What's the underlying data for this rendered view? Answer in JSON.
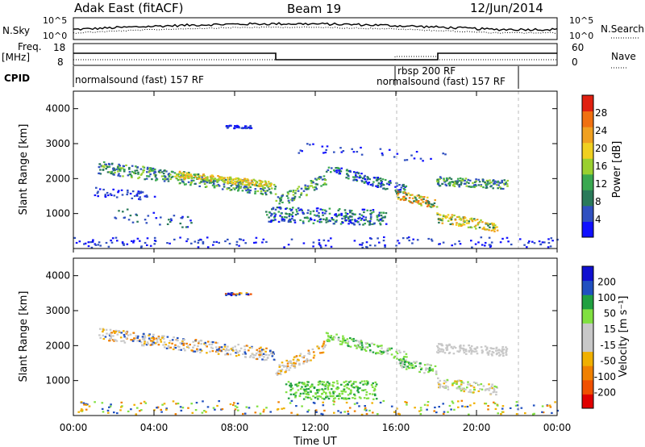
{
  "header": {
    "title": "Adak East (fitACF)",
    "beam": "Beam 19",
    "date": "12/Jun/2014"
  },
  "top_panels": {
    "nsky": {
      "label": "N.Sky",
      "right_label": "N.Search",
      "left_ticks": [
        "10^5",
        "10^0"
      ],
      "right_ticks": [
        "10^5",
        "10^0"
      ]
    },
    "freq": {
      "label_line1": "Freq.",
      "label_line2": "[MHz]",
      "left_ticks": [
        "18",
        "8"
      ],
      "right_ticks": [
        "60",
        "0"
      ],
      "right_label": "Nave"
    },
    "cpid": {
      "label": "CPID",
      "segments": [
        "normalsound (fast) 157 RF",
        "rbsp 200 RF",
        "normalsound (fast) 157 RF"
      ]
    }
  },
  "colors": {
    "power": [
      "#1010ff",
      "#3050c0",
      "#2a7a5a",
      "#3aa850",
      "#9ad030",
      "#f0d020",
      "#f0a020",
      "#f07010",
      "#e02010"
    ],
    "velocity": [
      "#e00000",
      "#f05000",
      "#f08000",
      "#f0b000",
      "#c8c8c8",
      "#c8c8c8",
      "#80e040",
      "#20a040",
      "#2050c0",
      "#1010d0"
    ]
  },
  "chart_data": [
    {
      "type": "heatmap",
      "name": "power",
      "ylabel": "Slant Range [km]",
      "ylim": [
        0,
        4500
      ],
      "xlim_hours": [
        0,
        24
      ],
      "yticks": [
        "1000",
        "2000",
        "3000",
        "4000"
      ],
      "colorbar": {
        "label": "Power [dB]",
        "range": [
          0,
          32
        ],
        "ticks": [
          "4",
          "8",
          "12",
          "16",
          "20",
          "24",
          "28"
        ]
      }
    },
    {
      "type": "heatmap",
      "name": "velocity",
      "xlabel": "Time UT",
      "ylabel": "Slant Range [km]",
      "ylim": [
        0,
        4500
      ],
      "xlim_hours": [
        0,
        24
      ],
      "yticks": [
        "1000",
        "2000",
        "3000",
        "4000"
      ],
      "xticks": [
        "00:00",
        "04:00",
        "08:00",
        "12:00",
        "16:00",
        "20:00",
        "00:00"
      ],
      "colorbar": {
        "label": "Velocity [m s⁻¹]",
        "ticks": [
          "200",
          "100",
          "50",
          "15",
          "-15",
          "-50",
          "-100",
          "-200"
        ]
      }
    }
  ]
}
